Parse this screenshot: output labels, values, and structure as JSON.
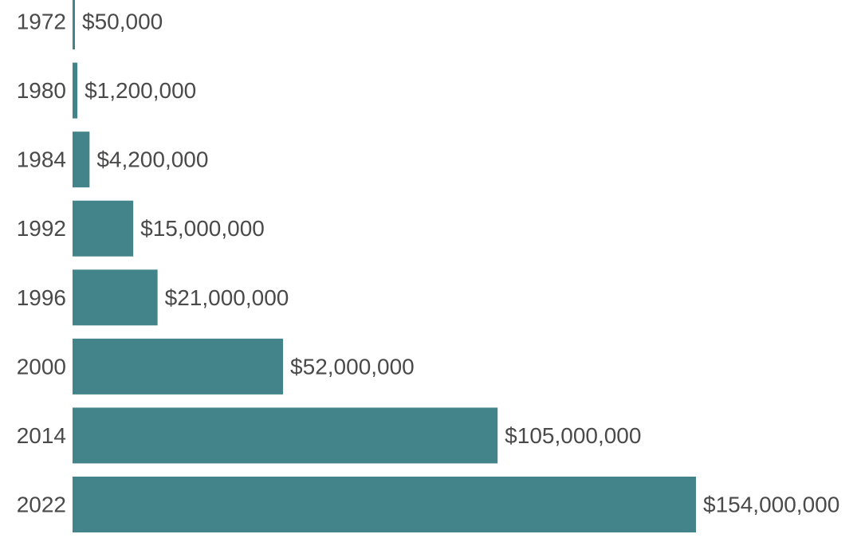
{
  "chart_data": {
    "type": "bar",
    "orientation": "horizontal",
    "categories": [
      "1972",
      "1980",
      "1984",
      "1992",
      "1996",
      "2000",
      "2014",
      "2022"
    ],
    "values": [
      50000,
      1200000,
      4200000,
      15000000,
      21000000,
      52000000,
      105000000,
      154000000
    ],
    "value_labels": [
      "$50,000",
      "$1,200,000",
      "$4,200,000",
      "$15,000,000",
      "$21,000,000",
      "$52,000,000",
      "$105,000,000",
      "$154,000,000"
    ],
    "bar_color": "#428489",
    "text_color": "#4a4a4a",
    "xlim": [
      0,
      154000000
    ],
    "grid": false,
    "legend": false
  }
}
